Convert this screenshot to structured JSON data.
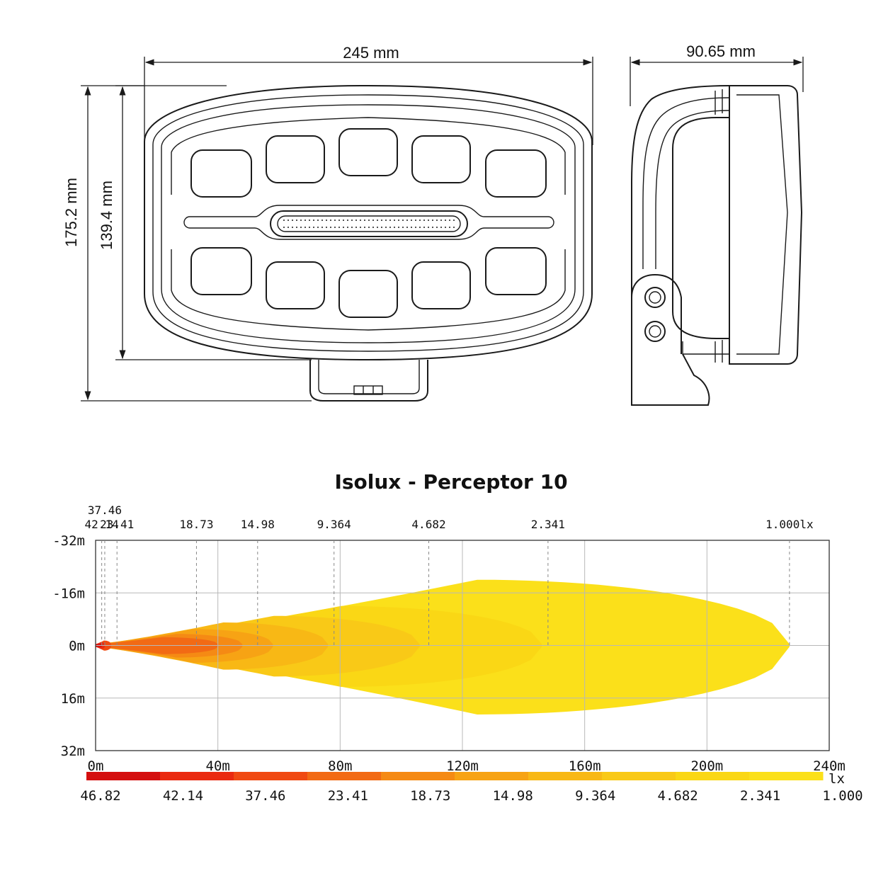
{
  "dimensions": {
    "width": "245 mm",
    "depth": "90.65 mm",
    "height_total": "175.2 mm",
    "height_body": "139.4 mm"
  },
  "chart_data": {
    "type": "isolux",
    "title": "Isolux - Perceptor 10",
    "x_ticks": [
      "0m",
      "40m",
      "80m",
      "120m",
      "160m",
      "200m",
      "240m"
    ],
    "y_ticks": [
      "-32m",
      "-16m",
      "0m",
      "16m",
      "32m"
    ],
    "xlim": [
      0,
      240
    ],
    "ylim": [
      -32,
      32
    ],
    "grid": true,
    "contour_labels": [
      {
        "text": "42.14",
        "x": 2
      },
      {
        "text": "37.46",
        "x": 3
      },
      {
        "text": "23.41",
        "x": 7
      },
      {
        "text": "18.73",
        "x": 33
      },
      {
        "text": "14.98",
        "x": 53
      },
      {
        "text": "9.364",
        "x": 78
      },
      {
        "text": "4.682",
        "x": 109
      },
      {
        "text": "2.341",
        "x": 148
      },
      {
        "text": "1.000lx",
        "x": 227
      }
    ],
    "contours": [
      {
        "level": 1.0,
        "reach": 227,
        "half_width": 20
      },
      {
        "level": 2.341,
        "reach": 146,
        "half_width": 12
      },
      {
        "level": 4.682,
        "reach": 106,
        "half_width": 9
      },
      {
        "level": 9.364,
        "reach": 76,
        "half_width": 7
      },
      {
        "level": 14.98,
        "reach": 58,
        "half_width": 5
      },
      {
        "level": 18.73,
        "reach": 48,
        "half_width": 3.5
      },
      {
        "level": 23.41,
        "reach": 40,
        "half_width": 2.5
      },
      {
        "level": 37.46,
        "reach": 5,
        "half_width": 1.5
      },
      {
        "level": 42.14,
        "reach": 3,
        "half_width": 1
      },
      {
        "level": 46.82,
        "reach": 2,
        "half_width": 0.5
      }
    ],
    "legend": {
      "unit": "lx",
      "labels": [
        "46.82",
        "42.14",
        "37.46",
        "23.41",
        "18.73",
        "14.98",
        "9.364",
        "4.682",
        "2.341",
        "1.000"
      ],
      "colors": [
        "#d40f0f",
        "#ea2a10",
        "#f04a12",
        "#f26a14",
        "#f58a14",
        "#f7a314",
        "#f8b815",
        "#f9c917",
        "#fad715",
        "#fbe01a"
      ]
    }
  }
}
